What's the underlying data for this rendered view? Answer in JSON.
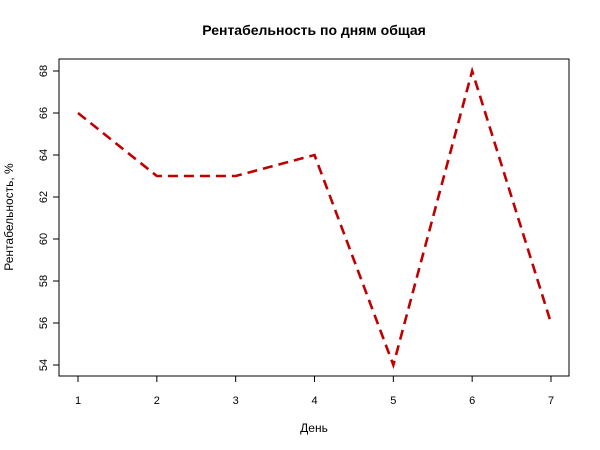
{
  "chart_data": {
    "type": "line",
    "title": "Рентабельность по дням общая",
    "xlabel": "День",
    "ylabel": "Рентабельность, %",
    "x": [
      1,
      2,
      3,
      4,
      5,
      6,
      7
    ],
    "series": [
      {
        "values": [
          66,
          63,
          63,
          64,
          54,
          68,
          56
        ],
        "color": "#c00000",
        "line_style": "dashed"
      }
    ],
    "xlim": [
      1,
      7
    ],
    "ylim": [
      54,
      68
    ],
    "x_ticks": [
      1,
      2,
      3,
      4,
      5,
      6,
      7
    ],
    "y_ticks": [
      54,
      56,
      58,
      60,
      62,
      64,
      66,
      68
    ],
    "grid": false,
    "legend": "none"
  }
}
